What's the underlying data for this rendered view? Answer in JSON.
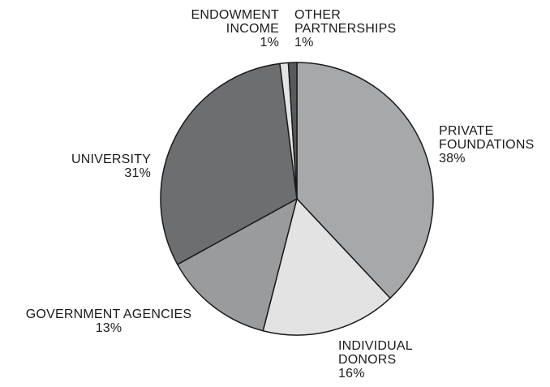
{
  "chart_data": {
    "type": "pie",
    "title": "",
    "slices": [
      {
        "label_lines": [
          "PRIVATE",
          "FOUNDATIONS"
        ],
        "value_label": "38%",
        "value": 38,
        "color": "#a7a8aa"
      },
      {
        "label_lines": [
          "INDIVIDUAL",
          "DONORS"
        ],
        "value_label": "16%",
        "value": 16,
        "color": "#e3e3e3"
      },
      {
        "label_lines": [
          "GOVERNMENT AGENCIES"
        ],
        "value_label": "13%",
        "value": 13,
        "color": "#9a9b9d"
      },
      {
        "label_lines": [
          "UNIVERSITY"
        ],
        "value_label": "31%",
        "value": 31,
        "color": "#6d6e70"
      },
      {
        "label_lines": [
          "ENDOWMENT",
          "INCOME"
        ],
        "value_label": "1%",
        "value": 1,
        "color": "#e3e3e3"
      },
      {
        "label_lines": [
          "OTHER",
          "PARTNERSHIPS"
        ],
        "value_label": "1%",
        "value": 1,
        "color": "#58595b"
      }
    ]
  }
}
